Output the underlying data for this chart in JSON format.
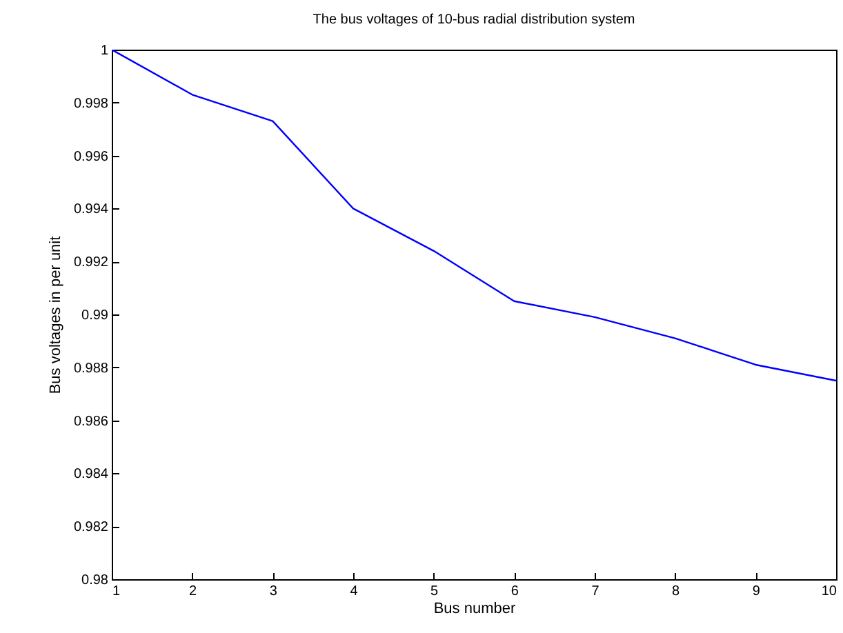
{
  "chart_data": {
    "type": "line",
    "title": "The bus voltages of 10-bus radial distribution system",
    "xlabel": "Bus number",
    "ylabel": "Bus voltages in per unit",
    "x": [
      1,
      2,
      3,
      4,
      5,
      6,
      7,
      8,
      9,
      10
    ],
    "series": [
      {
        "color": "#0000ff",
        "values": [
          1,
          0.9983,
          0.9973,
          0.994,
          0.9924,
          0.9905,
          0.9899,
          0.9891,
          0.9881,
          0.9875
        ]
      }
    ],
    "xlim": [
      1,
      10
    ],
    "xticks": [
      1,
      2,
      3,
      4,
      5,
      6,
      7,
      8,
      9,
      10
    ],
    "ylim": [
      0.98,
      1
    ],
    "yticks": [
      0.98,
      0.982,
      0.984,
      0.986,
      0.988,
      0.99,
      0.992,
      0.994,
      0.996,
      0.998,
      1
    ],
    "grid": false,
    "legend": false,
    "marker": "none",
    "line_style": "solid"
  }
}
